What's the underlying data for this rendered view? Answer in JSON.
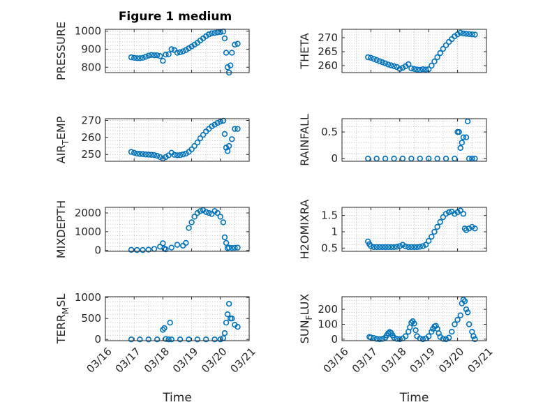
{
  "chart_data": {
    "type": "scatter",
    "title": "Figure 1 medium",
    "xlabel": "Time",
    "x_ticks": [
      "03/16",
      "03/17",
      "03/18",
      "03/19",
      "03/20",
      "03/21"
    ],
    "xlim": [
      "03/16",
      "03/21"
    ],
    "grid": true,
    "marker": "circle-open",
    "color": "#0072BD",
    "panels": [
      {
        "ylabel": "PRESSURE",
        "ylim": [
          770,
          1010
        ],
        "yticks": [
          800,
          900,
          1000
        ],
        "yticklabels": [
          "800",
          "900",
          "1000"
        ],
        "points": [
          [
            0.9,
            855
          ],
          [
            1.0,
            852
          ],
          [
            1.1,
            850
          ],
          [
            1.2,
            850
          ],
          [
            1.3,
            852
          ],
          [
            1.4,
            858
          ],
          [
            1.5,
            864
          ],
          [
            1.6,
            868
          ],
          [
            1.7,
            866
          ],
          [
            1.8,
            866
          ],
          [
            1.9,
            862
          ],
          [
            2.0,
            835
          ],
          [
            2.1,
            870
          ],
          [
            2.2,
            872
          ],
          [
            2.3,
            900
          ],
          [
            2.4,
            895
          ],
          [
            2.5,
            880
          ],
          [
            2.6,
            883
          ],
          [
            2.7,
            888
          ],
          [
            2.8,
            895
          ],
          [
            2.9,
            905
          ],
          [
            3.0,
            915
          ],
          [
            3.1,
            925
          ],
          [
            3.2,
            935
          ],
          [
            3.3,
            948
          ],
          [
            3.4,
            960
          ],
          [
            3.5,
            972
          ],
          [
            3.6,
            982
          ],
          [
            3.7,
            988
          ],
          [
            3.8,
            990
          ],
          [
            3.9,
            993
          ],
          [
            4.0,
            995
          ],
          [
            4.1,
            998
          ],
          [
            4.15,
            960
          ],
          [
            4.2,
            880
          ],
          [
            4.25,
            800
          ],
          [
            4.3,
            770
          ],
          [
            4.35,
            810
          ],
          [
            4.4,
            880
          ],
          [
            4.5,
            925
          ],
          [
            4.6,
            930
          ]
        ]
      },
      {
        "ylabel": "THETA",
        "ylim": [
          257.5,
          273
        ],
        "yticks": [
          260,
          265,
          270
        ],
        "yticklabels": [
          "260",
          "265",
          "270"
        ],
        "points": [
          [
            0.9,
            263
          ],
          [
            1.0,
            262.8
          ],
          [
            1.1,
            262.4
          ],
          [
            1.2,
            262
          ],
          [
            1.3,
            261.6
          ],
          [
            1.4,
            261.2
          ],
          [
            1.5,
            260.8
          ],
          [
            1.6,
            260.4
          ],
          [
            1.7,
            260.1
          ],
          [
            1.8,
            259.8
          ],
          [
            1.9,
            259.5
          ],
          [
            2.0,
            258.8
          ],
          [
            2.1,
            259.2
          ],
          [
            2.2,
            259.8
          ],
          [
            2.3,
            260.5
          ],
          [
            2.4,
            259
          ],
          [
            2.5,
            258.8
          ],
          [
            2.6,
            258.6
          ],
          [
            2.7,
            258.5
          ],
          [
            2.8,
            258.7
          ],
          [
            2.9,
            258.6
          ],
          [
            3.0,
            258.7
          ],
          [
            3.1,
            260
          ],
          [
            3.2,
            261.5
          ],
          [
            3.3,
            263
          ],
          [
            3.4,
            264.5
          ],
          [
            3.5,
            266
          ],
          [
            3.6,
            267.3
          ],
          [
            3.7,
            268.5
          ],
          [
            3.8,
            269.5
          ],
          [
            3.9,
            270.5
          ],
          [
            4.0,
            271.2
          ],
          [
            4.1,
            271.8
          ],
          [
            4.2,
            271.5
          ],
          [
            4.3,
            271.4
          ],
          [
            4.4,
            271.3
          ],
          [
            4.5,
            271.2
          ],
          [
            4.6,
            271.1
          ]
        ]
      },
      {
        "ylabel": "AIR",
        "ylabel_sub": "T",
        "ylabel_tail": "EMP",
        "ylim": [
          246,
          271
        ],
        "yticks": [
          250,
          260,
          270
        ],
        "yticklabels": [
          "250",
          "260",
          "270"
        ],
        "points": [
          [
            0.9,
            251.5
          ],
          [
            1.0,
            251
          ],
          [
            1.1,
            250.5
          ],
          [
            1.2,
            250.3
          ],
          [
            1.3,
            250.2
          ],
          [
            1.4,
            250
          ],
          [
            1.5,
            249.9
          ],
          [
            1.6,
            249.8
          ],
          [
            1.7,
            249.6
          ],
          [
            1.8,
            249.2
          ],
          [
            1.9,
            248.5
          ],
          [
            2.0,
            247.5
          ],
          [
            2.1,
            248.5
          ],
          [
            2.2,
            249.5
          ],
          [
            2.3,
            251
          ],
          [
            2.4,
            249.8
          ],
          [
            2.5,
            249.5
          ],
          [
            2.6,
            249.6
          ],
          [
            2.7,
            250
          ],
          [
            2.8,
            250.5
          ],
          [
            2.9,
            251.5
          ],
          [
            3.0,
            253
          ],
          [
            3.1,
            255
          ],
          [
            3.2,
            257
          ],
          [
            3.3,
            259.5
          ],
          [
            3.4,
            261.5
          ],
          [
            3.5,
            263.5
          ],
          [
            3.6,
            265
          ],
          [
            3.7,
            266.5
          ],
          [
            3.8,
            267.5
          ],
          [
            3.9,
            268.5
          ],
          [
            4.0,
            269.3
          ],
          [
            4.1,
            269.8
          ],
          [
            4.15,
            262
          ],
          [
            4.2,
            254
          ],
          [
            4.25,
            252
          ],
          [
            4.3,
            255
          ],
          [
            4.4,
            259
          ],
          [
            4.5,
            265
          ],
          [
            4.6,
            265
          ]
        ]
      },
      {
        "ylabel": "RAINFALL",
        "ylim": [
          -0.05,
          0.75
        ],
        "yticks": [
          0,
          0.5
        ],
        "yticklabels": [
          "0",
          "0.5"
        ],
        "points": [
          [
            0.9,
            0
          ],
          [
            1.2,
            0
          ],
          [
            1.5,
            0
          ],
          [
            1.8,
            0
          ],
          [
            2.1,
            0
          ],
          [
            2.4,
            0
          ],
          [
            2.7,
            0
          ],
          [
            3.0,
            0
          ],
          [
            3.3,
            0
          ],
          [
            3.6,
            0
          ],
          [
            3.9,
            0
          ],
          [
            4.0,
            0.5
          ],
          [
            4.05,
            0.5
          ],
          [
            4.1,
            0.2
          ],
          [
            4.15,
            0.3
          ],
          [
            4.2,
            0.4
          ],
          [
            4.3,
            0.4
          ],
          [
            4.35,
            0.7
          ],
          [
            4.4,
            0
          ],
          [
            4.5,
            0
          ],
          [
            4.6,
            0
          ]
        ]
      },
      {
        "ylabel": "MIXDEPTH",
        "ylim": [
          -50,
          2300
        ],
        "yticks": [
          0,
          1000,
          2000
        ],
        "yticklabels": [
          "0",
          "1000",
          "2000"
        ],
        "points": [
          [
            0.9,
            30
          ],
          [
            1.1,
            20
          ],
          [
            1.3,
            20
          ],
          [
            1.5,
            40
          ],
          [
            1.7,
            80
          ],
          [
            1.9,
            200
          ],
          [
            2.0,
            380
          ],
          [
            2.05,
            100
          ],
          [
            2.1,
            60
          ],
          [
            2.3,
            150
          ],
          [
            2.5,
            300
          ],
          [
            2.7,
            250
          ],
          [
            2.8,
            400
          ],
          [
            2.9,
            1200
          ],
          [
            3.0,
            1500
          ],
          [
            3.1,
            1800
          ],
          [
            3.2,
            2000
          ],
          [
            3.3,
            2100
          ],
          [
            3.4,
            2150
          ],
          [
            3.5,
            2050
          ],
          [
            3.6,
            2000
          ],
          [
            3.7,
            1950
          ],
          [
            3.8,
            2100
          ],
          [
            3.9,
            2000
          ],
          [
            4.0,
            1800
          ],
          [
            4.1,
            1500
          ],
          [
            4.15,
            700
          ],
          [
            4.2,
            400
          ],
          [
            4.25,
            120
          ],
          [
            4.3,
            150
          ],
          [
            4.4,
            130
          ],
          [
            4.5,
            140
          ],
          [
            4.6,
            150
          ]
        ]
      },
      {
        "ylabel": "H2OMIXRA",
        "ylim": [
          0.4,
          1.75
        ],
        "yticks": [
          0.5,
          1,
          1.5
        ],
        "yticklabels": [
          "0.5",
          "1",
          "1.5"
        ],
        "points": [
          [
            0.9,
            0.7
          ],
          [
            0.95,
            0.62
          ],
          [
            1.0,
            0.56
          ],
          [
            1.1,
            0.53
          ],
          [
            1.2,
            0.53
          ],
          [
            1.3,
            0.53
          ],
          [
            1.4,
            0.53
          ],
          [
            1.5,
            0.53
          ],
          [
            1.6,
            0.53
          ],
          [
            1.7,
            0.53
          ],
          [
            1.8,
            0.53
          ],
          [
            1.9,
            0.54
          ],
          [
            2.0,
            0.56
          ],
          [
            2.1,
            0.6
          ],
          [
            2.2,
            0.55
          ],
          [
            2.3,
            0.53
          ],
          [
            2.4,
            0.53
          ],
          [
            2.5,
            0.53
          ],
          [
            2.6,
            0.53
          ],
          [
            2.7,
            0.54
          ],
          [
            2.8,
            0.56
          ],
          [
            2.9,
            0.6
          ],
          [
            3.0,
            0.72
          ],
          [
            3.1,
            0.85
          ],
          [
            3.2,
            1.0
          ],
          [
            3.3,
            1.15
          ],
          [
            3.4,
            1.3
          ],
          [
            3.5,
            1.45
          ],
          [
            3.6,
            1.55
          ],
          [
            3.7,
            1.6
          ],
          [
            3.8,
            1.62
          ],
          [
            3.9,
            1.55
          ],
          [
            4.0,
            1.6
          ],
          [
            4.1,
            1.65
          ],
          [
            4.2,
            1.55
          ],
          [
            4.25,
            1.1
          ],
          [
            4.3,
            1.05
          ],
          [
            4.4,
            1.1
          ],
          [
            4.5,
            1.15
          ],
          [
            4.6,
            1.1
          ]
        ]
      },
      {
        "ylabel": "TERR",
        "ylabel_sub": "M",
        "ylabel_tail": "SL",
        "ylim": [
          -30,
          1020
        ],
        "yticks": [
          0,
          500,
          1000
        ],
        "yticklabels": [
          "0",
          "500",
          "1000"
        ],
        "points": [
          [
            0.9,
            0
          ],
          [
            1.2,
            0
          ],
          [
            1.5,
            0
          ],
          [
            1.8,
            0
          ],
          [
            2.0,
            230
          ],
          [
            2.05,
            270
          ],
          [
            2.1,
            10
          ],
          [
            2.2,
            0
          ],
          [
            2.25,
            400
          ],
          [
            2.3,
            0
          ],
          [
            2.6,
            0
          ],
          [
            2.9,
            0
          ],
          [
            3.2,
            0
          ],
          [
            3.5,
            0
          ],
          [
            3.8,
            0
          ],
          [
            4.0,
            0
          ],
          [
            4.1,
            30
          ],
          [
            4.15,
            150
          ],
          [
            4.2,
            400
          ],
          [
            4.25,
            600
          ],
          [
            4.3,
            850
          ],
          [
            4.35,
            500
          ],
          [
            4.4,
            500
          ],
          [
            4.5,
            350
          ],
          [
            4.6,
            300
          ]
        ]
      },
      {
        "ylabel": "SUN",
        "ylabel_sub": "F",
        "ylabel_tail": "LUX",
        "ylim": [
          -10,
          285
        ],
        "yticks": [
          0,
          100,
          200
        ],
        "yticklabels": [
          "0",
          "100",
          "200"
        ],
        "points": [
          [
            0.95,
            15
          ],
          [
            1.0,
            12
          ],
          [
            1.1,
            8
          ],
          [
            1.2,
            2
          ],
          [
            1.3,
            0
          ],
          [
            1.4,
            2
          ],
          [
            1.5,
            10
          ],
          [
            1.55,
            25
          ],
          [
            1.6,
            40
          ],
          [
            1.65,
            48
          ],
          [
            1.7,
            42
          ],
          [
            1.75,
            25
          ],
          [
            1.8,
            10
          ],
          [
            1.9,
            2
          ],
          [
            2.0,
            0
          ],
          [
            2.1,
            5
          ],
          [
            2.2,
            20
          ],
          [
            2.3,
            50
          ],
          [
            2.35,
            80
          ],
          [
            2.4,
            110
          ],
          [
            2.45,
            120
          ],
          [
            2.5,
            105
          ],
          [
            2.55,
            60
          ],
          [
            2.6,
            20
          ],
          [
            2.7,
            5
          ],
          [
            2.8,
            0
          ],
          [
            2.9,
            5
          ],
          [
            3.0,
            20
          ],
          [
            3.1,
            50
          ],
          [
            3.15,
            70
          ],
          [
            3.2,
            85
          ],
          [
            3.25,
            90
          ],
          [
            3.3,
            70
          ],
          [
            3.35,
            40
          ],
          [
            3.4,
            15
          ],
          [
            3.5,
            2
          ],
          [
            3.6,
            0
          ],
          [
            3.7,
            10
          ],
          [
            3.8,
            50
          ],
          [
            3.9,
            100
          ],
          [
            4.0,
            130
          ],
          [
            4.1,
            160
          ],
          [
            4.15,
            240
          ],
          [
            4.2,
            265
          ],
          [
            4.25,
            255
          ],
          [
            4.3,
            200
          ],
          [
            4.35,
            180
          ],
          [
            4.4,
            100
          ],
          [
            4.5,
            50
          ],
          [
            4.55,
            20
          ],
          [
            4.6,
            0
          ]
        ]
      }
    ]
  }
}
